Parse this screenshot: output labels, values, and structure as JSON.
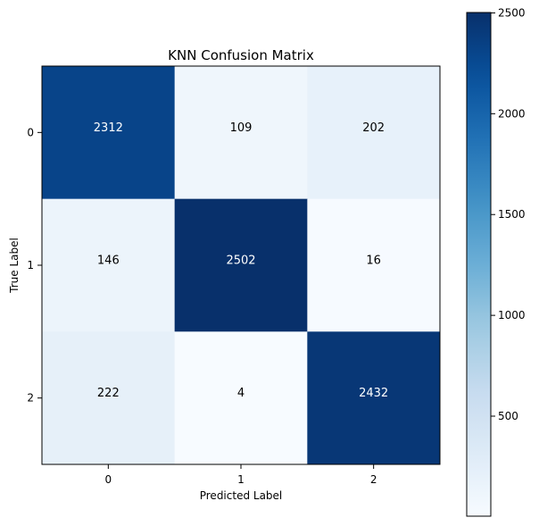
{
  "chart_data": {
    "type": "heatmap",
    "title": "KNN Confusion Matrix",
    "xlabel": "Predicted Label",
    "ylabel": "True Label",
    "x_tick_labels": [
      "0",
      "1",
      "2"
    ],
    "y_tick_labels": [
      "0",
      "1",
      "2"
    ],
    "matrix": [
      [
        2312,
        109,
        202
      ],
      [
        146,
        2502,
        16
      ],
      [
        222,
        4,
        2432
      ]
    ],
    "colormap": "Blues",
    "colorbar": {
      "ticks": [
        500,
        1000,
        1500,
        2000,
        2500
      ],
      "tick_labels": [
        "500",
        "1000",
        "1500",
        "2000",
        "2500"
      ],
      "range": [
        4,
        2502
      ]
    },
    "text_colors": {
      "dark_cell": "#ffffff",
      "light_cell": "#000000"
    }
  }
}
